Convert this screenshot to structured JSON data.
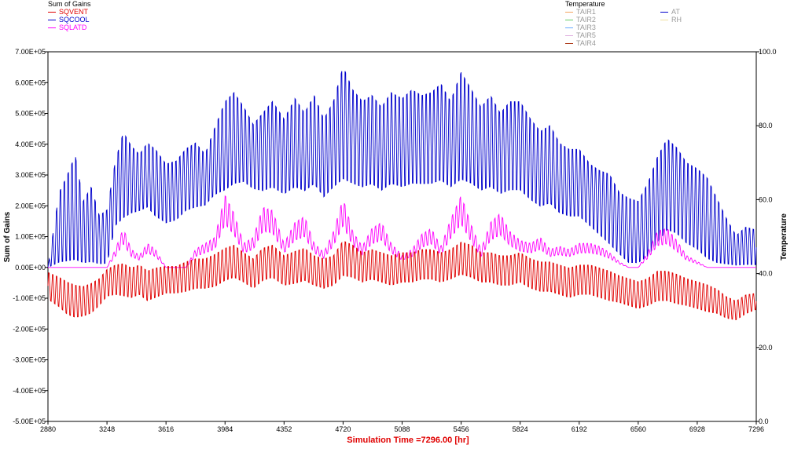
{
  "legend_left": {
    "title": "Sum of Gains",
    "items": [
      {
        "label": "SQVENT",
        "color": "#e00000"
      },
      {
        "label": "SQCOOL",
        "color": "#0000cc"
      },
      {
        "label": "SQLATD",
        "color": "#ff00ff"
      }
    ]
  },
  "legend_right": {
    "title": "Temperature",
    "col1": [
      {
        "label": "TAIR1",
        "color": "#f4a460"
      },
      {
        "label": "TAIR2",
        "color": "#66cc66"
      },
      {
        "label": "TAIR3",
        "color": "#66aaff"
      },
      {
        "label": "TAIR5",
        "color": "#ddaadd"
      },
      {
        "label": "TAIR4",
        "color": "#aa3311"
      }
    ],
    "col2": [
      {
        "label": "AT",
        "color": "#0000cc"
      },
      {
        "label": "RH",
        "color": "#f0e0a0"
      }
    ]
  },
  "chart_data": {
    "type": "line",
    "xlabel": "Simulation Time =7296.00 [hr]",
    "ylabel_left": "Sum of Gains",
    "ylabel_right": "Temperature",
    "xlim": [
      2880,
      7296
    ],
    "ylim_left": [
      -500000,
      700000
    ],
    "ylim_right": [
      0,
      100
    ],
    "x_ticks": [
      "2880",
      "3248",
      "3616",
      "3984",
      "4352",
      "4720",
      "5088",
      "5456",
      "5824",
      "6192",
      "6560",
      "6928",
      "7296"
    ],
    "y_ticks_left": [
      "7.00E+05",
      "6.00E+05",
      "5.00E+05",
      "4.00E+05",
      "3.00E+05",
      "2.00E+05",
      "1.00E+05",
      "0.00E+00",
      "-1.00E+05",
      "-2.00E+05",
      "-3.00E+05",
      "-4.00E+05",
      "-5.00E+05"
    ],
    "y_ticks_right": [
      "100.0",
      "80.0",
      "60.0",
      "40.0",
      "20.0",
      "0.0"
    ],
    "grid": false,
    "legend_placement": "top",
    "series": [
      {
        "name": "SQCOOL",
        "color": "#0000cc",
        "x": [
          2880,
          2950,
          3000,
          3050,
          3100,
          3150,
          3200,
          3248,
          3300,
          3350,
          3400,
          3450,
          3500,
          3550,
          3616,
          3680,
          3740,
          3800,
          3860,
          3920,
          3984,
          4040,
          4100,
          4160,
          4220,
          4280,
          4352,
          4420,
          4480,
          4540,
          4600,
          4660,
          4720,
          4780,
          4840,
          4900,
          4960,
          5020,
          5088,
          5150,
          5210,
          5270,
          5330,
          5390,
          5456,
          5520,
          5580,
          5640,
          5700,
          5760,
          5824,
          5890,
          5950,
          6010,
          6070,
          6130,
          6192,
          6260,
          6320,
          6380,
          6440,
          6500,
          6560,
          6620,
          6680,
          6740,
          6800,
          6860,
          6928,
          6990,
          7050,
          7110,
          7170,
          7230,
          7296
        ],
        "peak": [
          0,
          260000,
          320000,
          390000,
          230000,
          280000,
          180000,
          200000,
          360000,
          460000,
          410000,
          380000,
          420000,
          400000,
          350000,
          360000,
          400000,
          420000,
          380000,
          470000,
          560000,
          590000,
          540000,
          480000,
          520000,
          560000,
          500000,
          570000,
          520000,
          580000,
          500000,
          560000,
          680000,
          600000,
          560000,
          580000,
          540000,
          590000,
          570000,
          600000,
          580000,
          590000,
          620000,
          560000,
          660000,
          600000,
          540000,
          580000,
          520000,
          560000,
          560000,
          500000,
          460000,
          480000,
          420000,
          400000,
          400000,
          350000,
          330000,
          320000,
          260000,
          240000,
          230000,
          290000,
          380000,
          440000,
          410000,
          360000,
          340000,
          310000,
          240000,
          170000,
          110000,
          140000,
          130000
        ],
        "trough": [
          0,
          0,
          0,
          0,
          0,
          0,
          0,
          0,
          120000,
          140000,
          160000,
          170000,
          180000,
          150000,
          130000,
          140000,
          170000,
          180000,
          190000,
          220000,
          230000,
          250000,
          260000,
          240000,
          230000,
          240000,
          220000,
          240000,
          230000,
          250000,
          210000,
          240000,
          260000,
          250000,
          240000,
          250000,
          230000,
          250000,
          240000,
          250000,
          250000,
          250000,
          260000,
          240000,
          260000,
          250000,
          230000,
          240000,
          220000,
          230000,
          230000,
          200000,
          180000,
          190000,
          160000,
          150000,
          150000,
          120000,
          90000,
          60000,
          30000,
          0,
          0,
          20000,
          60000,
          100000,
          90000,
          60000,
          40000,
          10000,
          0,
          0,
          0,
          0,
          0
        ]
      },
      {
        "name": "SQLATD",
        "color": "#ff00ff",
        "x": [
          2880,
          2950,
          3000,
          3050,
          3100,
          3150,
          3200,
          3248,
          3300,
          3350,
          3400,
          3450,
          3500,
          3550,
          3616,
          3680,
          3740,
          3800,
          3860,
          3920,
          3984,
          4040,
          4100,
          4160,
          4220,
          4280,
          4352,
          4420,
          4480,
          4540,
          4600,
          4660,
          4720,
          4780,
          4840,
          4900,
          4960,
          5020,
          5088,
          5150,
          5210,
          5270,
          5330,
          5390,
          5456,
          5520,
          5580,
          5640,
          5700,
          5760,
          5824,
          5890,
          5950,
          6010,
          6070,
          6130,
          6192,
          6260,
          6320,
          6380,
          6440,
          6500,
          6560,
          6620,
          6680,
          6740,
          6800,
          6860,
          6928,
          6990,
          7050,
          7110,
          7170,
          7230,
          7296
        ],
        "y": [
          0,
          0,
          0,
          0,
          0,
          0,
          0,
          0,
          60000,
          130000,
          60000,
          40000,
          80000,
          60000,
          0,
          0,
          0,
          60000,
          80000,
          100000,
          240000,
          180000,
          80000,
          100000,
          200000,
          190000,
          80000,
          150000,
          170000,
          80000,
          50000,
          120000,
          230000,
          120000,
          70000,
          130000,
          150000,
          80000,
          40000,
          60000,
          110000,
          130000,
          70000,
          160000,
          240000,
          140000,
          60000,
          150000,
          180000,
          120000,
          90000,
          80000,
          100000,
          60000,
          70000,
          60000,
          80000,
          80000,
          70000,
          50000,
          20000,
          0,
          0,
          50000,
          120000,
          130000,
          90000,
          40000,
          20000,
          0,
          0,
          0,
          0,
          0,
          0
        ]
      },
      {
        "name": "SQVENT",
        "color": "#e00000",
        "x": [
          2880,
          2950,
          3000,
          3050,
          3100,
          3150,
          3200,
          3248,
          3300,
          3350,
          3400,
          3450,
          3500,
          3550,
          3616,
          3680,
          3740,
          3800,
          3860,
          3920,
          3984,
          4040,
          4100,
          4160,
          4220,
          4280,
          4352,
          4420,
          4480,
          4540,
          4600,
          4660,
          4720,
          4780,
          4840,
          4900,
          4960,
          5020,
          5088,
          5150,
          5210,
          5270,
          5330,
          5390,
          5456,
          5520,
          5580,
          5640,
          5700,
          5760,
          5824,
          5890,
          5950,
          6010,
          6070,
          6130,
          6192,
          6260,
          6320,
          6380,
          6440,
          6500,
          6560,
          6620,
          6680,
          6740,
          6800,
          6860,
          6928,
          6990,
          7050,
          7110,
          7170,
          7230,
          7296
        ],
        "mid": [
          -60000,
          -80000,
          -100000,
          -110000,
          -110000,
          -100000,
          -80000,
          -50000,
          -40000,
          -40000,
          -50000,
          -40000,
          -60000,
          -50000,
          -40000,
          -40000,
          -30000,
          -20000,
          -20000,
          -10000,
          10000,
          20000,
          0,
          -20000,
          10000,
          20000,
          -10000,
          0,
          10000,
          -10000,
          -20000,
          -10000,
          30000,
          20000,
          0,
          10000,
          0,
          -10000,
          0,
          0,
          10000,
          10000,
          0,
          10000,
          30000,
          20000,
          0,
          0,
          -10000,
          -10000,
          0,
          -20000,
          -30000,
          -30000,
          -40000,
          -50000,
          -40000,
          -40000,
          -50000,
          -60000,
          -70000,
          -80000,
          -90000,
          -80000,
          -60000,
          -60000,
          -70000,
          -80000,
          -90000,
          -100000,
          -110000,
          -130000,
          -140000,
          -120000,
          -110000
        ],
        "amp": [
          50000,
          55000,
          60000,
          60000,
          55000,
          55000,
          50000,
          50000,
          55000,
          60000,
          55000,
          55000,
          55000,
          55000,
          50000,
          50000,
          55000,
          55000,
          55000,
          60000,
          60000,
          60000,
          55000,
          55000,
          60000,
          60000,
          55000,
          60000,
          60000,
          55000,
          55000,
          55000,
          65000,
          60000,
          55000,
          55000,
          55000,
          55000,
          55000,
          55000,
          55000,
          55000,
          55000,
          55000,
          60000,
          60000,
          55000,
          55000,
          55000,
          55000,
          55000,
          55000,
          55000,
          55000,
          55000,
          55000,
          55000,
          55000,
          55000,
          55000,
          50000,
          50000,
          50000,
          50000,
          55000,
          55000,
          55000,
          50000,
          50000,
          50000,
          45000,
          40000,
          35000,
          35000,
          30000
        ]
      }
    ]
  }
}
